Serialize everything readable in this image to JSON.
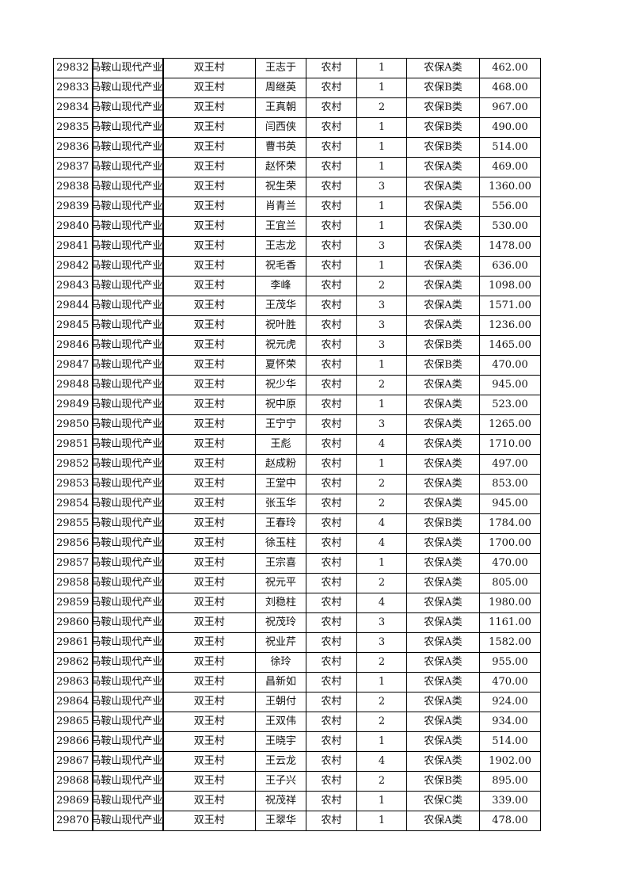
{
  "table": {
    "rows": [
      [
        "29832",
        "马鞍山现代产业",
        "双王村",
        "王志于",
        "农村",
        "1",
        "农保A类",
        "462.00"
      ],
      [
        "29833",
        "马鞍山现代产业",
        "双王村",
        "周继英",
        "农村",
        "1",
        "农保B类",
        "468.00"
      ],
      [
        "29834",
        "马鞍山现代产业",
        "双王村",
        "王真朝",
        "农村",
        "2",
        "农保B类",
        "967.00"
      ],
      [
        "29835",
        "马鞍山现代产业",
        "双王村",
        "闫西侠",
        "农村",
        "1",
        "农保B类",
        "490.00"
      ],
      [
        "29836",
        "马鞍山现代产业",
        "双王村",
        "曹书英",
        "农村",
        "1",
        "农保B类",
        "514.00"
      ],
      [
        "29837",
        "马鞍山现代产业",
        "双王村",
        "赵怀荣",
        "农村",
        "1",
        "农保A类",
        "469.00"
      ],
      [
        "29838",
        "马鞍山现代产业",
        "双王村",
        "祝生荣",
        "农村",
        "3",
        "农保A类",
        "1360.00"
      ],
      [
        "29839",
        "马鞍山现代产业",
        "双王村",
        "肖青兰",
        "农村",
        "1",
        "农保A类",
        "556.00"
      ],
      [
        "29840",
        "马鞍山现代产业",
        "双王村",
        "王宜兰",
        "农村",
        "1",
        "农保A类",
        "530.00"
      ],
      [
        "29841",
        "马鞍山现代产业",
        "双王村",
        "王志龙",
        "农村",
        "3",
        "农保A类",
        "1478.00"
      ],
      [
        "29842",
        "马鞍山现代产业",
        "双王村",
        "祝毛香",
        "农村",
        "1",
        "农保A类",
        "636.00"
      ],
      [
        "29843",
        "马鞍山现代产业",
        "双王村",
        "李峰",
        "农村",
        "2",
        "农保A类",
        "1098.00"
      ],
      [
        "29844",
        "马鞍山现代产业",
        "双王村",
        "王茂华",
        "农村",
        "3",
        "农保A类",
        "1571.00"
      ],
      [
        "29845",
        "马鞍山现代产业",
        "双王村",
        "祝叶胜",
        "农村",
        "3",
        "农保A类",
        "1236.00"
      ],
      [
        "29846",
        "马鞍山现代产业",
        "双王村",
        "祝元虎",
        "农村",
        "3",
        "农保B类",
        "1465.00"
      ],
      [
        "29847",
        "马鞍山现代产业",
        "双王村",
        "夏怀荣",
        "农村",
        "1",
        "农保B类",
        "470.00"
      ],
      [
        "29848",
        "马鞍山现代产业",
        "双王村",
        "祝少华",
        "农村",
        "2",
        "农保A类",
        "945.00"
      ],
      [
        "29849",
        "马鞍山现代产业",
        "双王村",
        "祝中原",
        "农村",
        "1",
        "农保A类",
        "523.00"
      ],
      [
        "29850",
        "马鞍山现代产业",
        "双王村",
        "王宁宁",
        "农村",
        "3",
        "农保A类",
        "1265.00"
      ],
      [
        "29851",
        "马鞍山现代产业",
        "双王村",
        "王彪",
        "农村",
        "4",
        "农保A类",
        "1710.00"
      ],
      [
        "29852",
        "马鞍山现代产业",
        "双王村",
        "赵成粉",
        "农村",
        "1",
        "农保A类",
        "497.00"
      ],
      [
        "29853",
        "马鞍山现代产业",
        "双王村",
        "王堂中",
        "农村",
        "2",
        "农保A类",
        "853.00"
      ],
      [
        "29854",
        "马鞍山现代产业",
        "双王村",
        "张玉华",
        "农村",
        "2",
        "农保A类",
        "945.00"
      ],
      [
        "29855",
        "马鞍山现代产业",
        "双王村",
        "王春玲",
        "农村",
        "4",
        "农保B类",
        "1784.00"
      ],
      [
        "29856",
        "马鞍山现代产业",
        "双王村",
        "徐玉柱",
        "农村",
        "4",
        "农保A类",
        "1700.00"
      ],
      [
        "29857",
        "马鞍山现代产业",
        "双王村",
        "王宗喜",
        "农村",
        "1",
        "农保A类",
        "470.00"
      ],
      [
        "29858",
        "马鞍山现代产业",
        "双王村",
        "祝元平",
        "农村",
        "2",
        "农保A类",
        "805.00"
      ],
      [
        "29859",
        "马鞍山现代产业",
        "双王村",
        "刘稳柱",
        "农村",
        "4",
        "农保A类",
        "1980.00"
      ],
      [
        "29860",
        "马鞍山现代产业",
        "双王村",
        "祝茂玲",
        "农村",
        "3",
        "农保A类",
        "1161.00"
      ],
      [
        "29861",
        "马鞍山现代产业",
        "双王村",
        "祝业芹",
        "农村",
        "3",
        "农保A类",
        "1582.00"
      ],
      [
        "29862",
        "马鞍山现代产业",
        "双王村",
        "徐玲",
        "农村",
        "2",
        "农保A类",
        "955.00"
      ],
      [
        "29863",
        "马鞍山现代产业",
        "双王村",
        "昌新如",
        "农村",
        "1",
        "农保A类",
        "470.00"
      ],
      [
        "29864",
        "马鞍山现代产业",
        "双王村",
        "王朝付",
        "农村",
        "2",
        "农保A类",
        "924.00"
      ],
      [
        "29865",
        "马鞍山现代产业",
        "双王村",
        "王双伟",
        "农村",
        "2",
        "农保A类",
        "934.00"
      ],
      [
        "29866",
        "马鞍山现代产业",
        "双王村",
        "王晓宇",
        "农村",
        "1",
        "农保A类",
        "514.00"
      ],
      [
        "29867",
        "马鞍山现代产业",
        "双王村",
        "王云龙",
        "农村",
        "4",
        "农保A类",
        "1902.00"
      ],
      [
        "29868",
        "马鞍山现代产业",
        "双王村",
        "王子兴",
        "农村",
        "2",
        "农保B类",
        "895.00"
      ],
      [
        "29869",
        "马鞍山现代产业",
        "双王村",
        "祝茂祥",
        "农村",
        "1",
        "农保C类",
        "339.00"
      ],
      [
        "29870",
        "马鞍山现代产业",
        "双王村",
        "王翠华",
        "农村",
        "1",
        "农保A类",
        "478.00"
      ]
    ]
  }
}
